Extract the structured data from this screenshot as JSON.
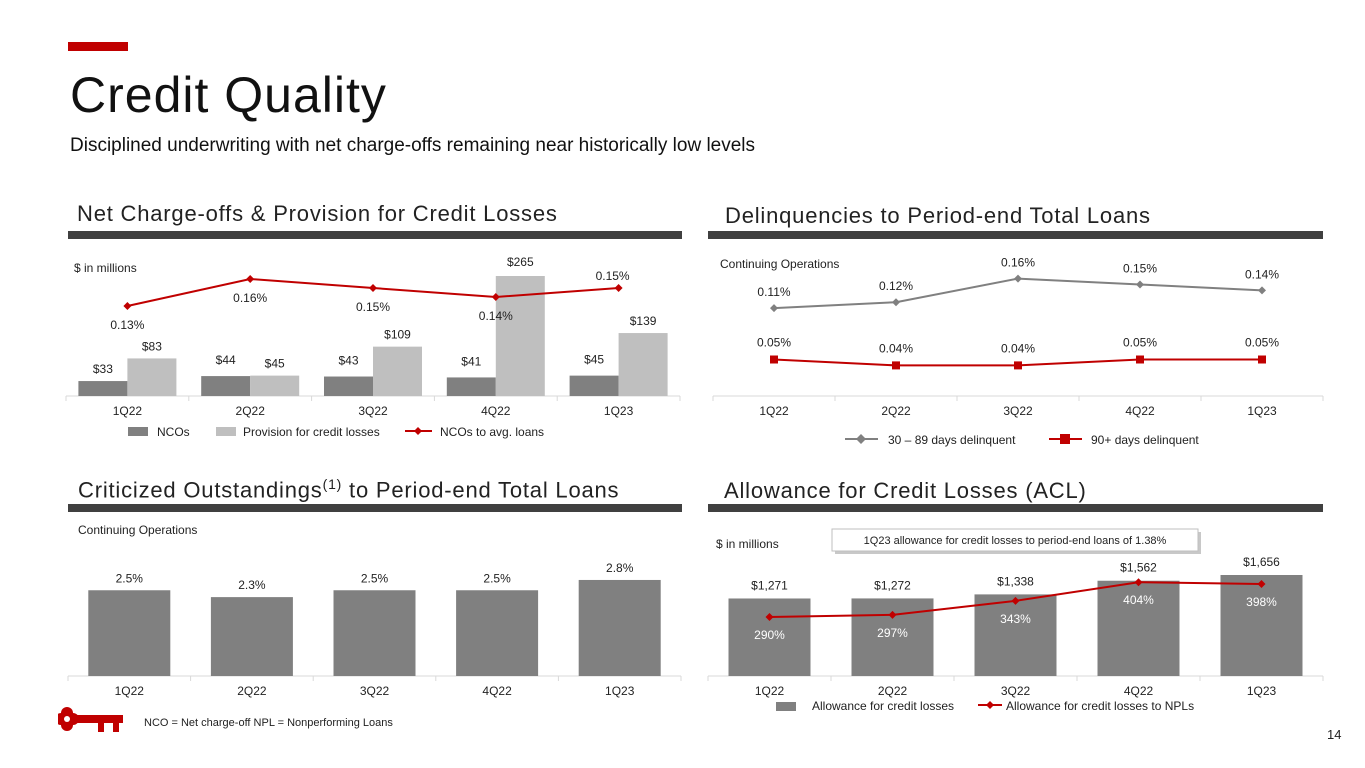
{
  "slide": {
    "title": "Credit Quality",
    "subtitle": "Disciplined underwriting with net charge-offs remaining near historically low levels",
    "footnote": "NCO = Net charge-off   NPL = Nonperforming Loans",
    "page_number": "14",
    "logo": "key-logo-icon"
  },
  "colors": {
    "accent": "#c00000",
    "dark_gray": "#808080",
    "light_gray": "#bfbfbf",
    "rule": "#404040",
    "axis": "#d9d9d9"
  },
  "panels": {
    "nco": {
      "title": "Net Charge-offs & Provision for Credit Losses",
      "unit_note": "$ in millions"
    },
    "delinquencies": {
      "title": "Delinquencies to Period-end Total Loans",
      "unit_note": "Continuing Operations"
    },
    "criticized": {
      "title_main": "Criticized Outstandings",
      "title_sup": "(1)",
      "title_rest": " to Period-end Total Loans",
      "unit_note": "Continuing Operations"
    },
    "acl": {
      "title": "Allowance for Credit Losses (ACL)",
      "unit_note": "$ in millions",
      "callout": "1Q23 allowance for credit losses to period-end loans of 1.38%"
    }
  },
  "chart_data": [
    {
      "id": "nco",
      "type": "bar",
      "title": "Net Charge-offs & Provision for Credit Losses",
      "ylabel": "$ in millions",
      "categories": [
        "1Q22",
        "2Q22",
        "3Q22",
        "4Q22",
        "1Q23"
      ],
      "ylim": [
        0,
        265
      ],
      "series": [
        {
          "name": "NCOs",
          "type": "bar",
          "values": [
            33,
            44,
            43,
            41,
            45
          ],
          "labels": [
            "$33",
            "$44",
            "$43",
            "$41",
            "$45"
          ]
        },
        {
          "name": "Provision for credit losses",
          "type": "bar",
          "values": [
            83,
            45,
            109,
            265,
            139
          ],
          "labels": [
            "$83",
            "$45",
            "$109",
            "$265",
            "$139"
          ]
        },
        {
          "name": "NCOs to avg. loans",
          "type": "line",
          "values": [
            0.13,
            0.16,
            0.15,
            0.14,
            0.15
          ],
          "labels": [
            "0.13%",
            "0.16%",
            "0.15%",
            "0.14%",
            "0.15%"
          ]
        }
      ],
      "legend": "bottom"
    },
    {
      "id": "delinquencies",
      "type": "line",
      "title": "Delinquencies to Period-end Total Loans",
      "note": "Continuing Operations",
      "categories": [
        "1Q22",
        "2Q22",
        "3Q22",
        "4Q22",
        "1Q23"
      ],
      "ylim": [
        0,
        0.18
      ],
      "series": [
        {
          "name": "30 – 89 days delinquent",
          "values": [
            0.11,
            0.12,
            0.16,
            0.15,
            0.14
          ],
          "labels": [
            "0.11%",
            "0.12%",
            "0.16%",
            "0.15%",
            "0.14%"
          ]
        },
        {
          "name": "90+ days delinquent",
          "values": [
            0.05,
            0.04,
            0.04,
            0.05,
            0.05
          ],
          "labels": [
            "0.05%",
            "0.04%",
            "0.04%",
            "0.05%",
            "0.05%"
          ]
        }
      ],
      "legend": "bottom"
    },
    {
      "id": "criticized",
      "type": "bar",
      "title": "Criticized Outstandings(1) to Period-end Total Loans",
      "note": "Continuing Operations",
      "categories": [
        "1Q22",
        "2Q22",
        "3Q22",
        "4Q22",
        "1Q23"
      ],
      "ylim": [
        0,
        3.5
      ],
      "series": [
        {
          "name": "Criticized outstandings to period-end total loans",
          "type": "bar",
          "values": [
            2.5,
            2.3,
            2.5,
            2.5,
            2.8
          ],
          "labels": [
            "2.5%",
            "2.3%",
            "2.5%",
            "2.5%",
            "2.8%"
          ]
        }
      ]
    },
    {
      "id": "acl",
      "type": "bar",
      "title": "Allowance for Credit Losses (ACL)",
      "ylabel": "$ in millions",
      "categories": [
        "1Q22",
        "2Q22",
        "3Q22",
        "4Q22",
        "1Q23"
      ],
      "ylim": [
        0,
        1656
      ],
      "series": [
        {
          "name": "Allowance for credit losses",
          "type": "bar",
          "values": [
            1271,
            1272,
            1338,
            1562,
            1656
          ],
          "labels": [
            "$1,271",
            "$1,272",
            "$1,338",
            "$1,562",
            "$1,656"
          ]
        },
        {
          "name": "Allowance for credit losses to NPLs",
          "type": "line",
          "values": [
            290,
            297,
            343,
            404,
            398
          ],
          "labels": [
            "290%",
            "297%",
            "343%",
            "404%",
            "398%"
          ]
        }
      ],
      "legend": "bottom"
    }
  ]
}
